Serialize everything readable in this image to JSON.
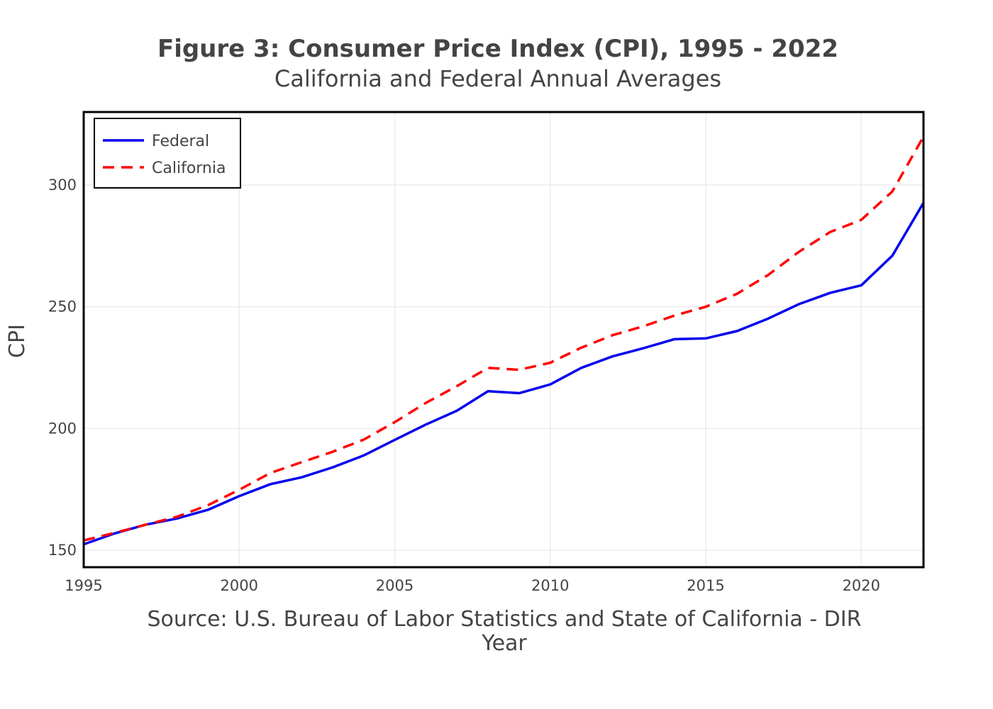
{
  "chart_data": {
    "type": "line",
    "title": "Figure 3: Consumer Price Index (CPI), 1995 - 2022",
    "subtitle": "California and Federal Annual Averages",
    "source_note": "Source: U.S. Bureau of Labor Statistics and State of California - DIR",
    "xlabel": "Year",
    "ylabel": "CPI",
    "xlim": [
      1995,
      2022
    ],
    "ylim": [
      143,
      330
    ],
    "x_ticks": [
      "1995",
      "2000",
      "2005",
      "2010",
      "2015",
      "2020"
    ],
    "y_ticks": [
      "150",
      "200",
      "250",
      "300"
    ],
    "grid": true,
    "legend_position": "top-left",
    "x": [
      1995,
      1996,
      1997,
      1998,
      1999,
      2000,
      2001,
      2002,
      2003,
      2004,
      2005,
      2006,
      2007,
      2008,
      2009,
      2010,
      2011,
      2012,
      2013,
      2014,
      2015,
      2016,
      2017,
      2018,
      2019,
      2020,
      2021,
      2022
    ],
    "series": [
      {
        "name": "Federal",
        "color": "#0000ee",
        "dash": "solid",
        "values": [
          152.4,
          156.9,
          160.5,
          163.0,
          166.6,
          172.2,
          177.1,
          179.9,
          184.0,
          188.9,
          195.3,
          201.6,
          207.3,
          215.3,
          214.5,
          218.1,
          224.9,
          229.6,
          233.0,
          236.7,
          237.0,
          240.0,
          245.1,
          251.1,
          255.7,
          258.8,
          271.0,
          292.7
        ]
      },
      {
        "name": "California",
        "color": "#ff0000",
        "dash": "dashed",
        "values": [
          154.0,
          157.1,
          160.5,
          163.7,
          168.5,
          174.8,
          181.7,
          186.1,
          190.4,
          195.4,
          202.6,
          210.5,
          217.4,
          224.9,
          224.1,
          227.0,
          233.2,
          238.3,
          242.0,
          246.4,
          250.0,
          255.3,
          263.0,
          272.6,
          280.7,
          285.7,
          297.4,
          319.9
        ]
      }
    ]
  }
}
